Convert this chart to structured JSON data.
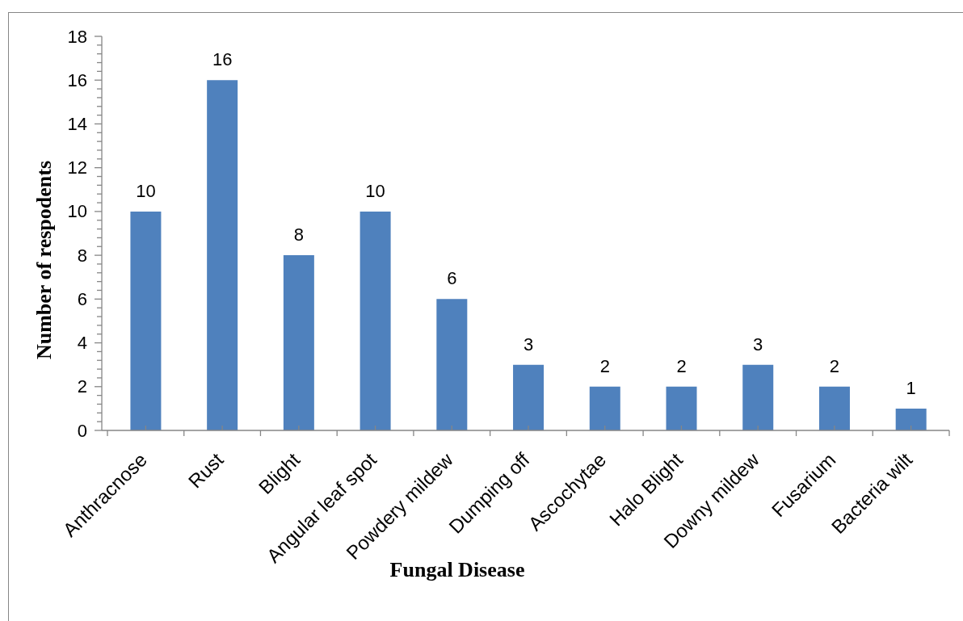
{
  "chart_data": {
    "type": "bar",
    "xlabel": "Fungal Disease",
    "ylabel": "Number of respodents",
    "categories": [
      "Anthracnose",
      "Rust",
      "Blight",
      "Angular leaf spot",
      "Powdery mildew",
      "Dumping off",
      "Ascochytae",
      "Halo Blight",
      "Downy mildew",
      "Fusarium",
      "Bacteria wilt"
    ],
    "values": [
      10,
      16,
      8,
      10,
      6,
      3,
      2,
      2,
      3,
      2,
      1
    ],
    "color": "#4f81bd",
    "data_labels": true,
    "ylim": [
      0,
      18
    ],
    "yticks": [
      0,
      {
        "value": 0.4,
        "label": null
      },
      {
        "value": 0.8,
        "label": null
      },
      {
        "value": 1.2,
        "label": null
      },
      {
        "value": 1.6,
        "label": null
      },
      2,
      {
        "value": 2.4,
        "label": null
      },
      {
        "value": 2.8,
        "label": null
      },
      {
        "value": 3.2,
        "label": null
      },
      {
        "value": 3.6,
        "label": null
      },
      4,
      {
        "value": 4.4,
        "label": null
      },
      {
        "value": 4.8,
        "label": null
      },
      {
        "value": 5.2,
        "label": null
      },
      {
        "value": 5.6,
        "label": null
      },
      6,
      {
        "value": 6.4,
        "label": null
      },
      {
        "value": 6.8,
        "label": null
      },
      {
        "value": 7.2,
        "label": null
      },
      {
        "value": 7.6,
        "label": null
      },
      8,
      {
        "value": 8.4,
        "label": null
      },
      {
        "value": 8.8,
        "label": null
      },
      {
        "value": 9.2,
        "label": null
      },
      {
        "value": 9.6,
        "label": null
      },
      10,
      {
        "value": 10.4,
        "label": null
      },
      {
        "value": 10.8,
        "label": null
      },
      {
        "value": 11.2,
        "label": null
      },
      {
        "value": 11.6,
        "label": null
      },
      12,
      {
        "value": 12.4,
        "label": null
      },
      {
        "value": 12.8,
        "label": null
      },
      {
        "value": 13.2,
        "label": null
      },
      {
        "value": 13.6,
        "label": null
      },
      14,
      {
        "value": 14.4,
        "label": null
      },
      {
        "value": 14.8,
        "label": null
      },
      {
        "value": 15.2,
        "label": null
      },
      {
        "value": 15.6,
        "label": null
      },
      16,
      {
        "value": 16.4,
        "label": null
      },
      {
        "value": 16.8,
        "label": null
      },
      {
        "value": 17.2,
        "label": null
      },
      {
        "value": 17.6,
        "label": null
      },
      18
    ]
  }
}
